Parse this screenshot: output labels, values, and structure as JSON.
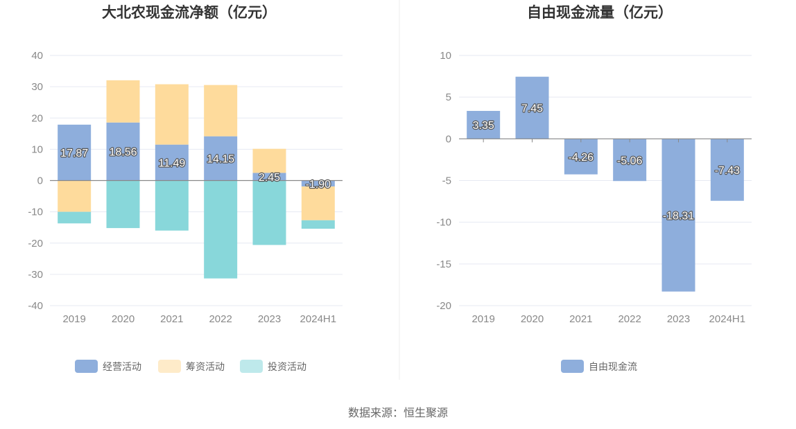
{
  "source": "数据来源：恒生聚源",
  "colors": {
    "operating": "#8eaedc",
    "financing": "#fedb9c",
    "investing": "#88d7da"
  },
  "chart_data": [
    {
      "type": "bar",
      "stacked": true,
      "title": "大北农现金流净额（亿元）",
      "categories": [
        "2019",
        "2020",
        "2021",
        "2022",
        "2023",
        "2024H1"
      ],
      "ylim": [
        -40,
        40
      ],
      "yticks": [
        "40",
        "30",
        "20",
        "10",
        "0",
        "-10",
        "-20",
        "-30",
        "-40"
      ],
      "series": [
        {
          "name": "经营活动",
          "color": "#8eaedc",
          "values": [
            17.87,
            18.56,
            11.49,
            14.15,
            2.45,
            -1.9
          ],
          "labels": [
            "17.87",
            "18.56",
            "11.49",
            "14.15",
            "2.45",
            "-1.90"
          ]
        },
        {
          "name": "筹资活动",
          "color": "#fedb9c",
          "values": [
            -10.0,
            13.5,
            19.3,
            16.4,
            7.7,
            -10.8
          ]
        },
        {
          "name": "投资活动",
          "color": "#88d7da",
          "values": [
            -3.7,
            -15.2,
            -16.0,
            -31.3,
            -20.6,
            -2.7
          ]
        }
      ]
    },
    {
      "type": "bar",
      "title": "自由现金流量（亿元）",
      "categories": [
        "2019",
        "2020",
        "2021",
        "2022",
        "2023",
        "2024H1"
      ],
      "ylim": [
        -20,
        10
      ],
      "yticks": [
        "10",
        "5",
        "0",
        "-5",
        "-10",
        "-15",
        "-20"
      ],
      "series": [
        {
          "name": "自由现金流",
          "color": "#8eaedc",
          "values": [
            3.35,
            7.45,
            -4.26,
            -5.06,
            -18.31,
            -7.43
          ],
          "labels": [
            "3.35",
            "7.45",
            "-4.26",
            "-5.06",
            "-18.31",
            "-7.43"
          ]
        }
      ]
    }
  ]
}
